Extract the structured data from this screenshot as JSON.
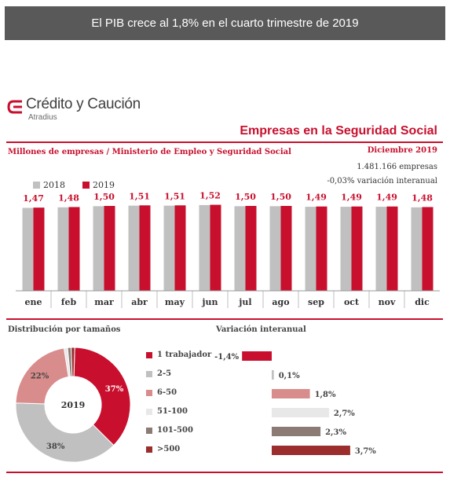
{
  "banner": {
    "title": "El PIB crece al 1,8% en el cuarto trimestre de 2019"
  },
  "logo": {
    "name": "Crédito y Caución",
    "sub": "Atradius"
  },
  "header": {
    "title": "Empresas en la Seguridad Social",
    "subtitle": "Millones de empresas / Ministerio de Empleo y Seguridad Social",
    "date": "Diciembre 2019",
    "companies": "1.481.166 empresas",
    "variation": "-0,03% variación interanual"
  },
  "colors": {
    "accent": "#c8102e",
    "gray": "#c0c0c0"
  },
  "chart_data": [
    {
      "type": "bar",
      "categories": [
        "ene",
        "feb",
        "mar",
        "abr",
        "may",
        "jun",
        "jul",
        "ago",
        "sep",
        "oct",
        "nov",
        "dic"
      ],
      "series": [
        {
          "name": "2018",
          "color": "#c0c0c0",
          "values": [
            1.465,
            1.475,
            1.495,
            1.505,
            1.505,
            1.515,
            1.495,
            1.495,
            1.485,
            1.485,
            1.485,
            1.475
          ]
        },
        {
          "name": "2019",
          "color": "#c8102e",
          "values": [
            1.47,
            1.48,
            1.5,
            1.51,
            1.51,
            1.52,
            1.5,
            1.5,
            1.49,
            1.49,
            1.49,
            1.48
          ]
        }
      ],
      "data_labels": [
        "1,47",
        "1,48",
        "1,50",
        "1,51",
        "1,51",
        "1,52",
        "1,50",
        "1,50",
        "1,49",
        "1,49",
        "1,49",
        "1,48"
      ],
      "ylim": [
        0,
        1.75
      ],
      "legend": "top-left"
    },
    {
      "type": "pie",
      "title": "Distribución por tamaños",
      "center_label": "2019",
      "slices": [
        {
          "label": "1 trabajador",
          "value": 37,
          "text": "37%",
          "color": "#c8102e"
        },
        {
          "label": "2-5",
          "value": 38,
          "text": "38%",
          "color": "#c0c0c0"
        },
        {
          "label": "6-50",
          "value": 22,
          "text": "22%",
          "color": "#d98c8c"
        },
        {
          "label": "51-100",
          "value": 1,
          "text": "",
          "color": "#e8e8e8"
        },
        {
          "label": "101-500",
          "value": 1,
          "text": "",
          "color": "#8c7b75"
        },
        {
          "label": ">500",
          "value": 1,
          "text": "",
          "color": "#9b2d2d"
        }
      ]
    },
    {
      "type": "bar",
      "orientation": "horizontal",
      "title": "Variación interanual",
      "categories": [
        "1 trabajador",
        "2-5",
        "6-50",
        "51-100",
        "101-500",
        ">500"
      ],
      "values": [
        -1.4,
        0.1,
        1.8,
        2.7,
        2.3,
        3.7
      ],
      "labels": [
        "-1,4%",
        "0,1%",
        "1,8%",
        "2,7%",
        "2,3%",
        "3,7%"
      ],
      "colors": [
        "#c8102e",
        "#c0c0c0",
        "#d98c8c",
        "#e8e8e8",
        "#8c7b75",
        "#9b2d2d"
      ]
    }
  ]
}
